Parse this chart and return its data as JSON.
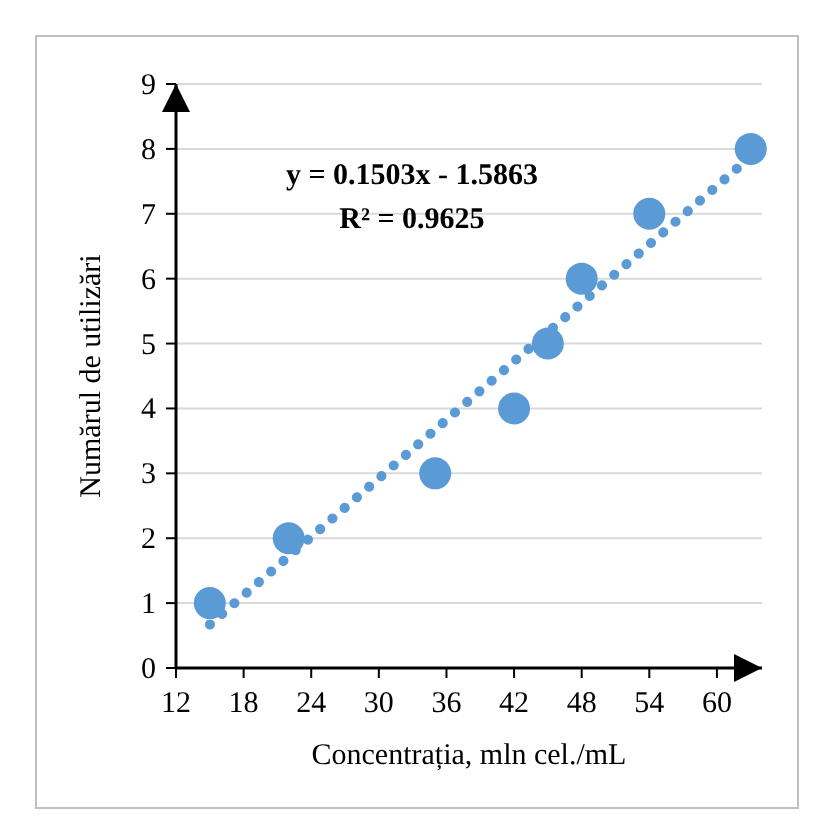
{
  "chart_data": {
    "type": "scatter",
    "xlabel": "Concentrația, mln cel./mL",
    "ylabel": "Numărul de utilizări",
    "xlim": [
      12,
      64
    ],
    "xticks": [
      12,
      18,
      24,
      30,
      36,
      42,
      48,
      54,
      60
    ],
    "ylim": [
      0,
      9
    ],
    "yticks": [
      0,
      1,
      2,
      3,
      4,
      5,
      6,
      7,
      8,
      9
    ],
    "grid": "y",
    "annotations": [
      "y = 0.1503x - 1.5863",
      "R² = 0.9625"
    ],
    "series": [
      {
        "color": "#5b9bd5",
        "marker": "circle",
        "x": [
          15,
          22,
          35,
          42,
          45,
          48,
          54,
          63
        ],
        "values": [
          1,
          2,
          3,
          4,
          5,
          6,
          7,
          8
        ]
      },
      {
        "type": "line",
        "color": "#5b9bd5",
        "line_style": "dotted",
        "x": [
          15,
          63
        ],
        "values": [
          0.67,
          7.88
        ]
      }
    ]
  }
}
